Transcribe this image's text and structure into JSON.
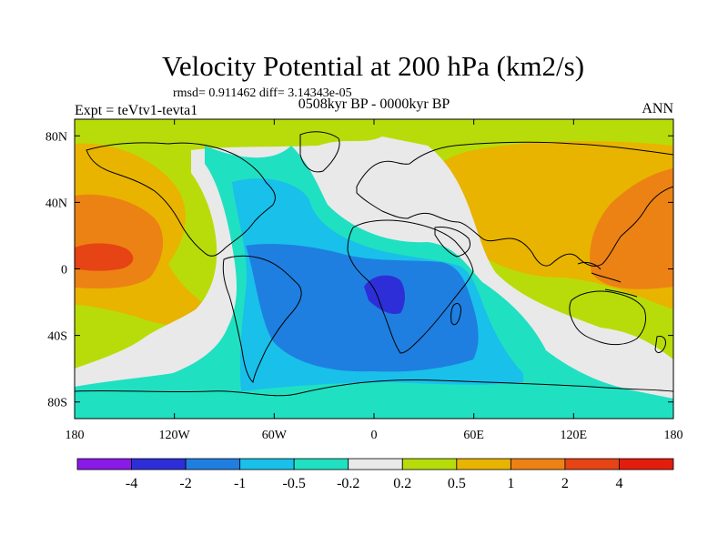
{
  "chart_data": {
    "type": "filled-contour-map",
    "title": "Velocity Potential at 200 hPa (km2/s)",
    "stats": "rmsd= 0.911462 diff= 3.14343e-05",
    "left_label": "Expt = teVtv1-tevta1",
    "center_label": "0508kyr BP - 0000kyr BP",
    "right_label": "ANN",
    "x_ticks": [
      "180",
      "120W",
      "60W",
      "0",
      "60E",
      "120E",
      "180"
    ],
    "x_tick_values": [
      -180,
      -120,
      -60,
      0,
      60,
      120,
      180
    ],
    "y_ticks": [
      "80N",
      "40N",
      "0",
      "40S",
      "80S"
    ],
    "y_tick_values": [
      80,
      40,
      0,
      -40,
      -80
    ],
    "xlim": [
      -180,
      180
    ],
    "ylim": [
      -90,
      90
    ],
    "colorbar_labels": [
      "-4",
      "-2",
      "-1",
      "-0.5",
      "-0.2",
      "0.2",
      "0.5",
      "1",
      "2",
      "4"
    ],
    "levels": [
      -4,
      -2,
      -1,
      -0.5,
      -0.2,
      0.2,
      0.5,
      1,
      2,
      4
    ],
    "colors": [
      "#8a1ae8",
      "#2e2ed8",
      "#1f7fe0",
      "#19c0ea",
      "#20e0c2",
      "#e9e9e9",
      "#b8dc0a",
      "#e8b400",
      "#ec8214",
      "#e64414",
      "#e41c0c"
    ],
    "field_regions": [
      {
        "name": "positive-pacific",
        "level": "0.2 to 0.5",
        "lon": [
          -180,
          -20
        ],
        "lat": [
          -90,
          90
        ]
      },
      {
        "name": "positive-east-hemisphere",
        "level": "0.5 to 2",
        "lon": [
          60,
          180
        ],
        "lat": [
          -40,
          80
        ]
      },
      {
        "name": "negative-atlantic",
        "level": "-1 to -0.5",
        "lon": [
          -80,
          50
        ],
        "lat": [
          -60,
          10
        ]
      },
      {
        "name": "minimum-south-africa",
        "level": "-4 to -2",
        "lon": [
          -5,
          15
        ],
        "lat": [
          -30,
          -10
        ]
      },
      {
        "name": "maximum-central-pacific",
        "level": "2 to 4",
        "lon": [
          -175,
          -145
        ],
        "lat": [
          0,
          20
        ]
      }
    ]
  }
}
